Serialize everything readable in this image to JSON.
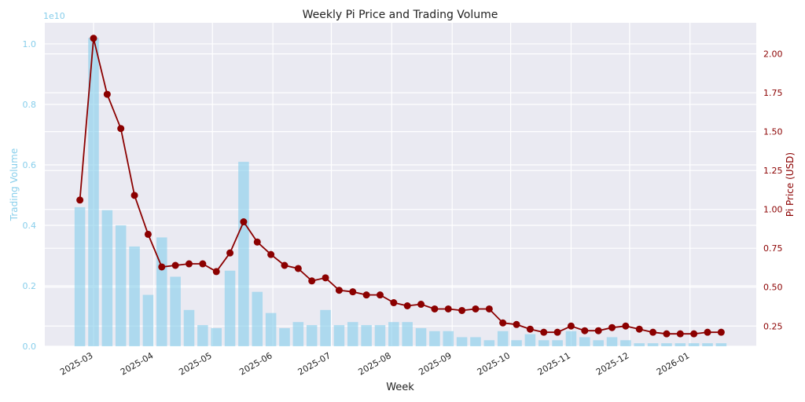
{
  "chart_data": {
    "type": "bar+line",
    "title": "Weekly Pi Price and Trading Volume",
    "xlabel": "Week",
    "ylabel_left": "Trading Volume",
    "ylabel_right": "Pi Price (USD)",
    "left_offset_label": "1e10",
    "ylim_left": [
      0,
      1.07
    ],
    "ylim_right": [
      0.12,
      2.2
    ],
    "left_ticks": [
      "0.0",
      "0.2",
      "0.4",
      "0.6",
      "0.8",
      "1.0"
    ],
    "right_ticks": [
      "0.25",
      "0.50",
      "0.75",
      "1.00",
      "1.25",
      "1.50",
      "1.75",
      "2.00"
    ],
    "month_labels": [
      "2025-03",
      "2025-04",
      "2025-05",
      "2025-06",
      "2025-07",
      "2025-08",
      "2025-09",
      "2025-10",
      "2025-11",
      "2025-12",
      "2026-01"
    ],
    "month_days": [
      28,
      59,
      89,
      120,
      150,
      181,
      212,
      242,
      273,
      303,
      334
    ],
    "grid": true,
    "colors": {
      "volume": "#87ceeb",
      "price": "#8b0000",
      "volume_axis": "#87ceeb",
      "price_axis": "#8b0000",
      "background": "#eaeaf2"
    },
    "week_days": [
      21,
      28,
      35,
      42,
      49,
      56,
      63,
      70,
      77,
      84,
      91,
      98,
      105,
      112,
      119,
      126,
      133,
      140,
      147,
      154,
      161,
      168,
      175,
      182,
      189,
      196,
      203,
      210,
      217,
      224,
      231,
      238,
      245,
      252,
      259,
      266,
      273,
      280,
      287,
      294,
      301,
      308,
      315,
      322,
      329,
      336,
      343,
      350
    ],
    "volume": [
      0.46,
      1.02,
      0.45,
      0.4,
      0.33,
      0.17,
      0.36,
      0.23,
      0.12,
      0.07,
      0.06,
      0.25,
      0.61,
      0.18,
      0.11,
      0.06,
      0.08,
      0.07,
      0.12,
      0.07,
      0.08,
      0.07,
      0.07,
      0.08,
      0.08,
      0.06,
      0.05,
      0.05,
      0.03,
      0.03,
      0.02,
      0.05,
      0.02,
      0.04,
      0.02,
      0.02,
      0.05,
      0.03,
      0.02,
      0.03,
      0.02,
      0.01,
      0.01,
      0.01,
      0.01,
      0.01,
      0.01,
      0.01
    ],
    "price": [
      1.06,
      2.1,
      1.74,
      1.52,
      1.09,
      0.84,
      0.63,
      0.64,
      0.65,
      0.65,
      0.6,
      0.72,
      0.92,
      0.79,
      0.71,
      0.64,
      0.62,
      0.54,
      0.56,
      0.48,
      0.47,
      0.45,
      0.45,
      0.4,
      0.38,
      0.39,
      0.36,
      0.36,
      0.35,
      0.36,
      0.36,
      0.27,
      0.26,
      0.23,
      0.21,
      0.21,
      0.25,
      0.22,
      0.22,
      0.24,
      0.25,
      0.23,
      0.21,
      0.2,
      0.2,
      0.2,
      0.21,
      0.21
    ]
  }
}
